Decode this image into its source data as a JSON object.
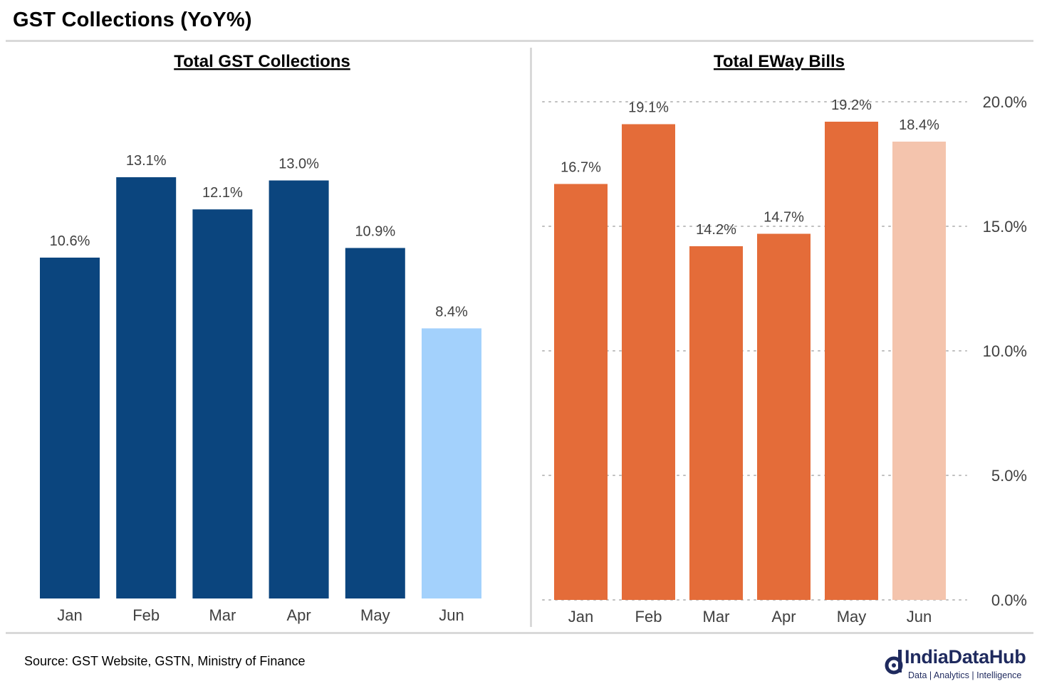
{
  "title": "GST Collections (YoY%)",
  "source": "Source: GST Website, GSTN, Ministry of Finance",
  "logo": {
    "name": "IndiaDataHub",
    "tagline": "Data | Analytics | Intelligence"
  },
  "chart_data": [
    {
      "type": "bar",
      "title": "Total GST Collections",
      "categories": [
        "Jan",
        "Feb",
        "Mar",
        "Apr",
        "May",
        "Jun"
      ],
      "values": [
        10.6,
        13.1,
        12.1,
        13.0,
        10.9,
        8.4
      ],
      "value_labels": [
        "10.6%",
        "13.1%",
        "12.1%",
        "13.0%",
        "10.9%",
        "8.4%"
      ],
      "colors": [
        "#0b457e",
        "#0b457e",
        "#0b457e",
        "#0b457e",
        "#0b457e",
        "#a3d1fc"
      ],
      "ylim": [
        0,
        16.0
      ],
      "grid": false,
      "axis_visible": false
    },
    {
      "type": "bar",
      "title": "Total EWay Bills",
      "categories": [
        "Jan",
        "Feb",
        "Mar",
        "Apr",
        "May",
        "Jun"
      ],
      "values": [
        16.7,
        19.1,
        14.2,
        14.7,
        19.2,
        18.4
      ],
      "value_labels": [
        "16.7%",
        "19.1%",
        "14.2%",
        "14.7%",
        "19.2%",
        "18.4%"
      ],
      "colors": [
        "#e46c39",
        "#e46c39",
        "#e46c39",
        "#e46c39",
        "#e46c39",
        "#f4c4ad"
      ],
      "ylim": [
        0,
        20
      ],
      "yticks": [
        0,
        5,
        10,
        15,
        20
      ],
      "ytick_labels": [
        "0.0%",
        "5.0%",
        "10.0%",
        "15.0%",
        "20.0%"
      ],
      "grid": true,
      "axis_side": "right"
    }
  ]
}
